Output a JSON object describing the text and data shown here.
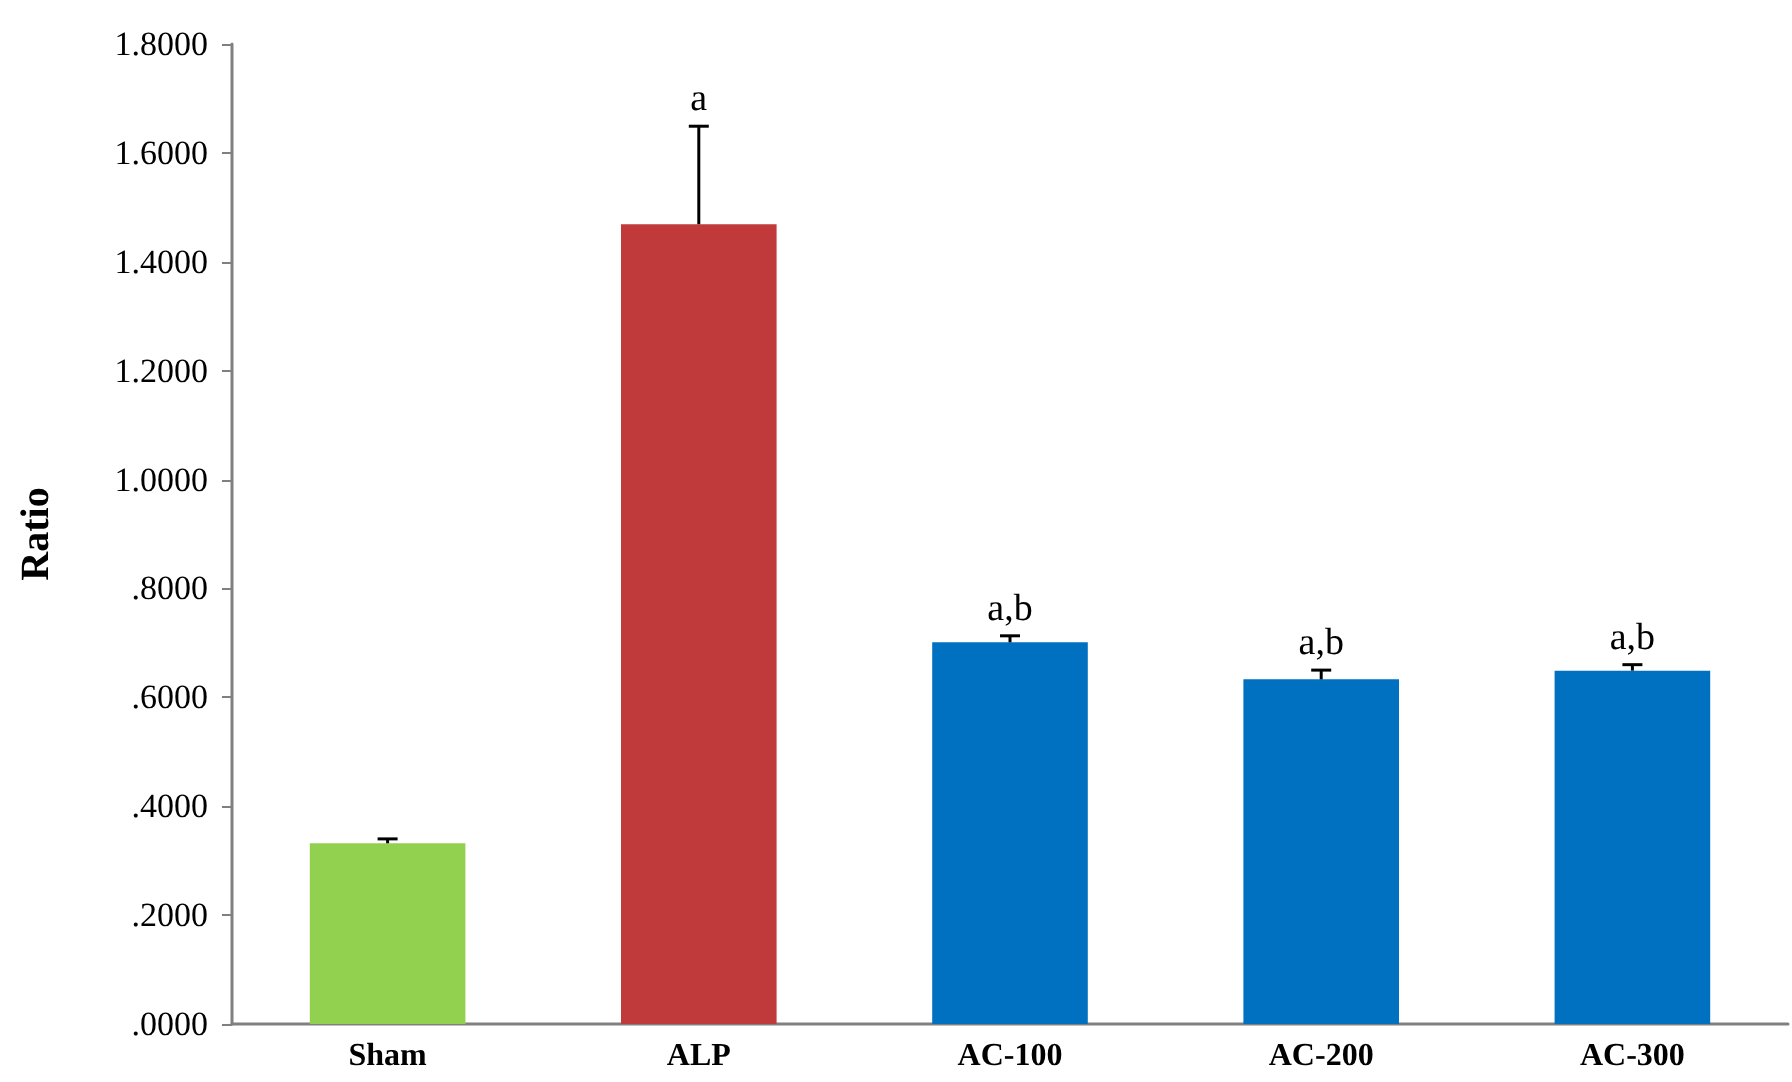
{
  "chart_data": {
    "type": "bar",
    "ylabel": "Ratio",
    "categories": [
      "Sham",
      "ALP",
      "AC-100",
      "AC-200",
      "AC-300"
    ],
    "values": [
      0.332,
      1.469,
      0.701,
      0.633,
      0.649
    ],
    "errors": [
      0.008,
      0.18,
      0.012,
      0.017,
      0.011
    ],
    "colors": [
      "#92d050",
      "#c0393b",
      "#0070c0",
      "#0070c0",
      "#0070c0"
    ],
    "ylim": [
      0,
      1.8
    ],
    "yticks": [
      {
        "value": 0,
        "label": ".0000"
      },
      {
        "value": 0.2,
        "label": ".2000"
      },
      {
        "value": 0.4,
        "label": ".4000"
      },
      {
        "value": 0.6,
        "label": ".6000"
      },
      {
        "value": 0.8,
        "label": ".8000"
      },
      {
        "value": 1.0,
        "label": "1.0000"
      },
      {
        "value": 1.2,
        "label": "1.2000"
      },
      {
        "value": 1.4,
        "label": "1.4000"
      },
      {
        "value": 1.6,
        "label": "1.6000"
      },
      {
        "value": 1.8,
        "label": "1.8000"
      }
    ],
    "annotations": [
      {
        "text": "a",
        "x": "ALP",
        "y": 1.649
      },
      {
        "text": "a,b",
        "x": "AC-100",
        "y": 0.713
      },
      {
        "text": "a,b",
        "x": "AC-200",
        "y": 0.65
      },
      {
        "text": "a,b",
        "x": "AC-300",
        "y": 0.66
      }
    ],
    "grid": false
  }
}
